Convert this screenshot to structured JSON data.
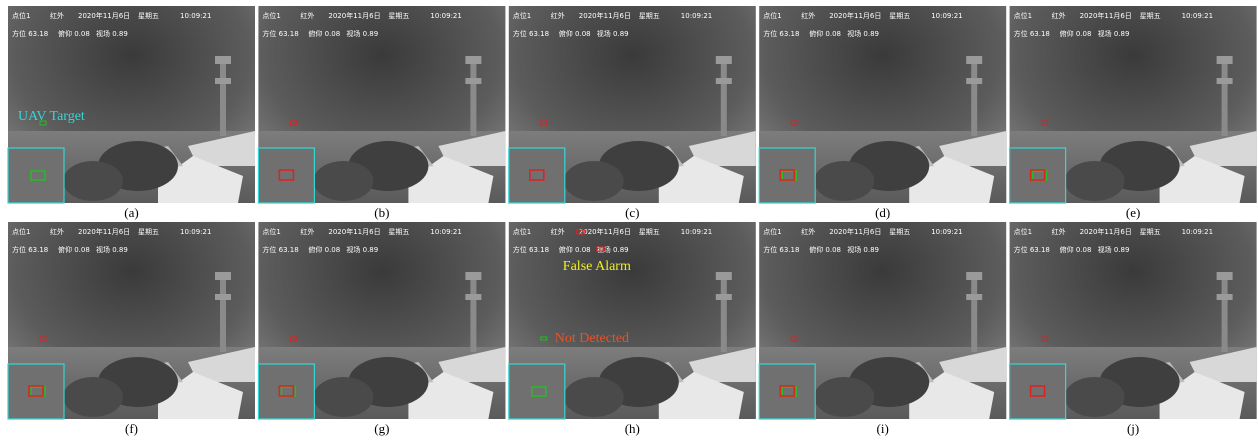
{
  "overlay": {
    "line1": [
      "点位1",
      "红外",
      "2020年11月6日",
      "星期五",
      "10:09:21"
    ],
    "line2": [
      "方位 63.18",
      "俯仰 0.08",
      "视场 0.89"
    ]
  },
  "panels": [
    {
      "caption": "(a)",
      "annotations": [
        "UAV Target"
      ]
    },
    {
      "caption": "(b)"
    },
    {
      "caption": "(c)"
    },
    {
      "caption": "(d)"
    },
    {
      "caption": "(e)"
    },
    {
      "caption": "(f)"
    },
    {
      "caption": "(g)"
    },
    {
      "caption": "(h)",
      "annotations": [
        "False Alarm",
        "Not Detected"
      ]
    },
    {
      "caption": "(i)"
    },
    {
      "caption": "(j)"
    }
  ]
}
